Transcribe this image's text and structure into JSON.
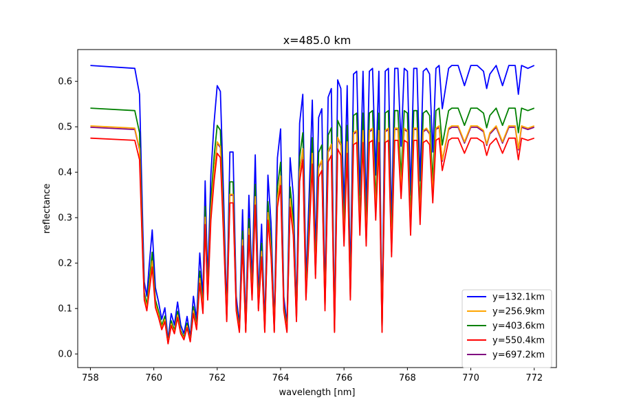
{
  "chart_data": {
    "type": "line",
    "title": "x=485.0 km",
    "xlabel": "wavelength [nm]",
    "ylabel": "reflectance",
    "xlim": [
      757.6,
      772.7
    ],
    "ylim": [
      -0.03,
      0.67
    ],
    "xticks": [
      758,
      760,
      762,
      764,
      766,
      768,
      770,
      772
    ],
    "yticks": [
      0.0,
      0.1,
      0.2,
      0.3,
      0.4,
      0.5,
      0.6
    ],
    "ytick_labels": [
      "0.0",
      "0.1",
      "0.2",
      "0.3",
      "0.4",
      "0.5",
      "0.6"
    ],
    "grid": false,
    "legend_position": "lower-right",
    "series": [
      {
        "name": "y=132.1km",
        "color": "#0000ff",
        "continuum": 0.635,
        "order": 1
      },
      {
        "name": "y=256.9km",
        "color": "#ffa500",
        "continuum": 0.502,
        "order": 4
      },
      {
        "name": "y=403.6km",
        "color": "#008000",
        "continuum": 0.541,
        "order": 2
      },
      {
        "name": "y=550.4km",
        "color": "#ff0000",
        "continuum": 0.475,
        "order": 5
      },
      {
        "name": "y=697.2km",
        "color": "#800080",
        "continuum": 0.499,
        "order": 3
      }
    ],
    "spectrum_shape": {
      "x": [
        758.0,
        759.4,
        759.55,
        759.65,
        759.7,
        759.78,
        759.85,
        759.95,
        760.05,
        760.15,
        760.25,
        760.35,
        760.45,
        760.55,
        760.65,
        760.75,
        760.85,
        760.95,
        761.05,
        761.15,
        761.25,
        761.35,
        761.45,
        761.55,
        761.62,
        761.7,
        761.8,
        761.9,
        762.0,
        762.1,
        762.2,
        762.3,
        762.4,
        762.5,
        762.6,
        762.7,
        762.8,
        762.9,
        763.0,
        763.1,
        763.2,
        763.3,
        763.4,
        763.5,
        763.6,
        763.7,
        763.8,
        763.9,
        764.0,
        764.1,
        764.2,
        764.3,
        764.4,
        764.5,
        764.6,
        764.7,
        764.8,
        764.9,
        765.0,
        765.1,
        765.2,
        765.3,
        765.4,
        765.5,
        765.6,
        765.7,
        765.8,
        765.9,
        766.0,
        766.1,
        766.2,
        766.3,
        766.4,
        766.5,
        766.6,
        766.7,
        766.8,
        766.9,
        767.0,
        767.1,
        767.2,
        767.3,
        767.4,
        767.5,
        767.6,
        767.7,
        767.8,
        767.9,
        768.0,
        768.1,
        768.2,
        768.3,
        768.4,
        768.5,
        768.6,
        768.7,
        768.8,
        768.9,
        769.0,
        769.1,
        769.2,
        769.3,
        769.4,
        769.6,
        769.8,
        770.0,
        770.2,
        770.4,
        770.5,
        770.6,
        770.8,
        771.0,
        771.2,
        771.4,
        771.5,
        771.6,
        771.8,
        772.0
      ],
      "f": [
        1.0,
        0.99,
        0.9,
        0.45,
        0.25,
        0.2,
        0.3,
        0.43,
        0.23,
        0.18,
        0.12,
        0.16,
        0.05,
        0.14,
        0.1,
        0.18,
        0.1,
        0.07,
        0.13,
        0.06,
        0.2,
        0.12,
        0.35,
        0.2,
        0.6,
        0.25,
        0.62,
        0.8,
        0.93,
        0.91,
        0.55,
        0.15,
        0.7,
        0.7,
        0.2,
        0.1,
        0.5,
        0.1,
        0.55,
        0.25,
        0.69,
        0.2,
        0.45,
        0.1,
        0.62,
        0.45,
        0.1,
        0.68,
        0.78,
        0.2,
        0.1,
        0.68,
        0.55,
        0.15,
        0.8,
        0.9,
        0.25,
        0.55,
        0.88,
        0.35,
        0.82,
        0.85,
        0.2,
        0.89,
        0.92,
        0.1,
        0.95,
        0.92,
        0.5,
        0.93,
        0.25,
        0.97,
        0.98,
        0.55,
        0.98,
        0.5,
        0.98,
        0.99,
        0.62,
        0.98,
        0.1,
        0.98,
        0.99,
        0.45,
        0.99,
        0.99,
        0.72,
        0.99,
        0.98,
        0.55,
        0.99,
        0.99,
        0.6,
        0.98,
        0.99,
        0.97,
        0.7,
        0.99,
        1.0,
        0.85,
        0.92,
        0.99,
        1.0,
        1.0,
        0.93,
        1.0,
        1.0,
        0.98,
        0.92,
        0.97,
        1.0,
        0.93,
        1.0,
        1.0,
        0.9,
        1.0,
        0.99,
        1.0
      ]
    }
  }
}
